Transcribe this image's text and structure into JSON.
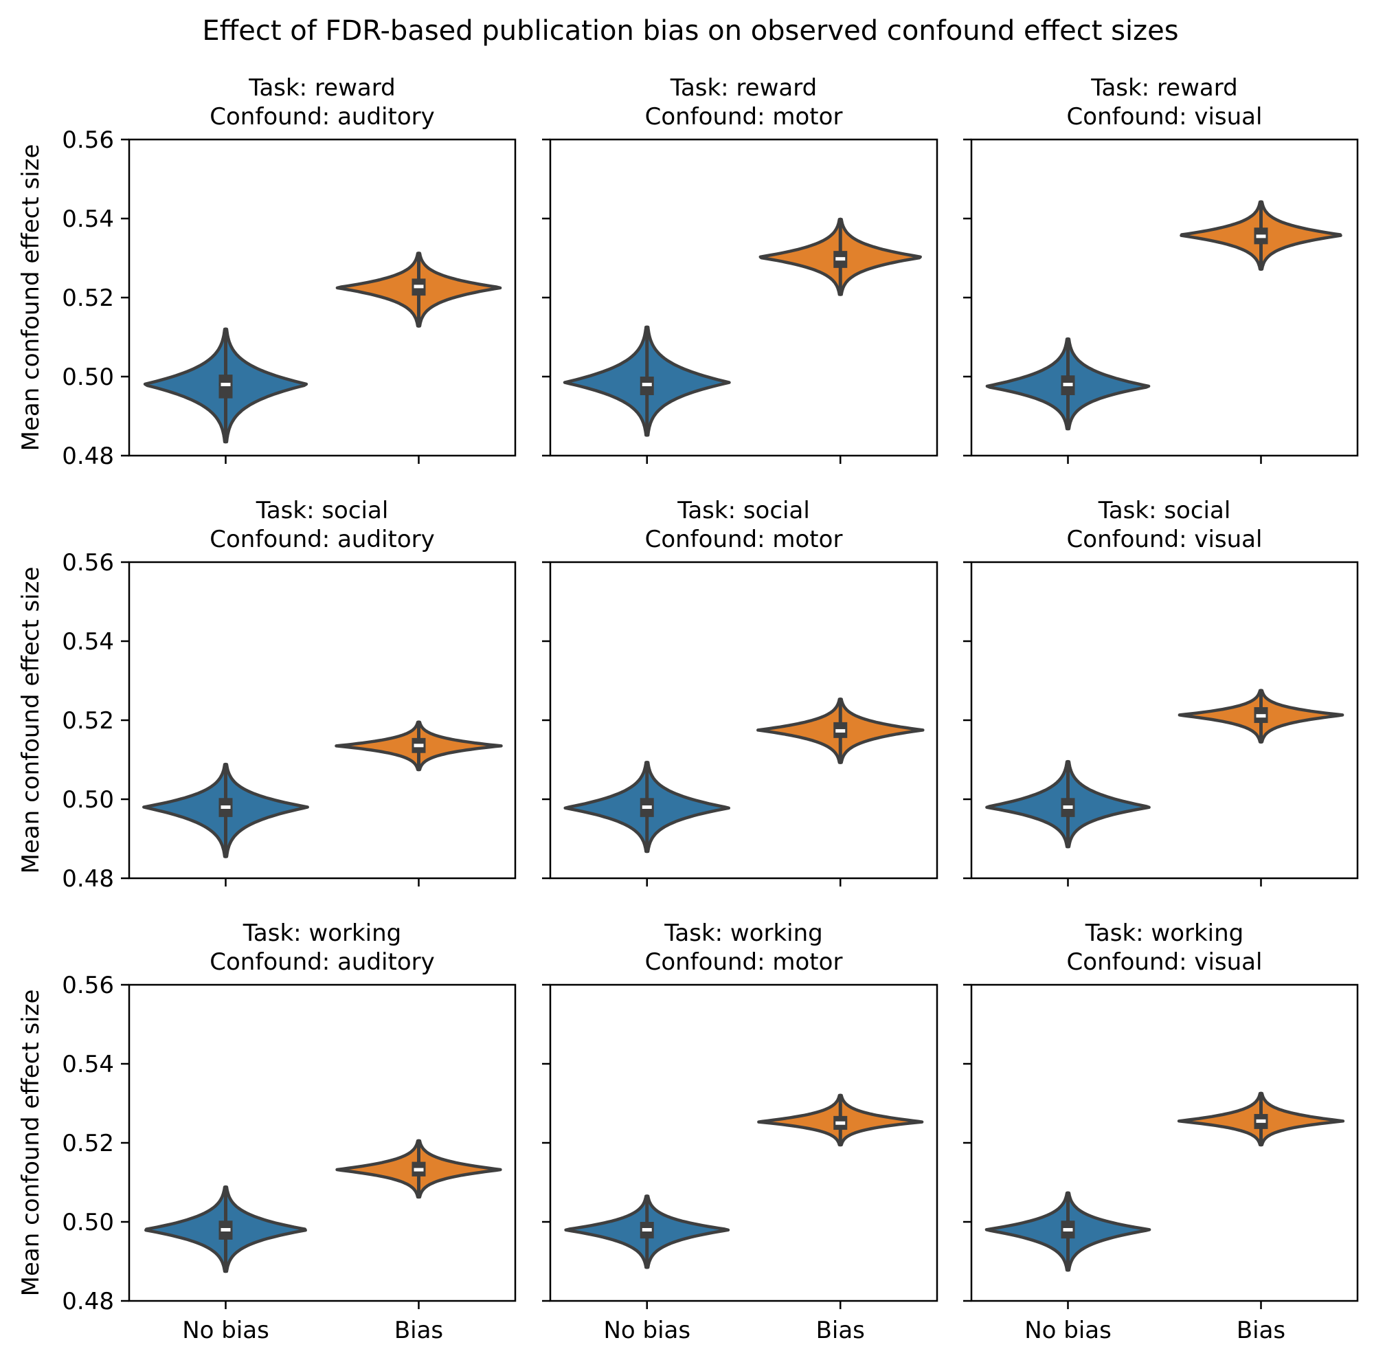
{
  "chart_data": {
    "type": "violin",
    "title": "Effect of FDR-based publication bias on observed confound effect sizes",
    "ylabel": "Mean confound effect size",
    "xlabel": "",
    "ylim": [
      0.48,
      0.56
    ],
    "yticks": [
      "0.48",
      "0.50",
      "0.52",
      "0.54",
      "0.56"
    ],
    "categories": [
      "No bias",
      "Bias"
    ],
    "colors": {
      "No bias": "#3274a1",
      "Bias": "#e1812c",
      "outline": "#3f3f3f"
    },
    "grid": false,
    "layout": "3x3 facet grid, shared y-axis",
    "panels": [
      {
        "task": "reward",
        "confound": "auditory",
        "title_line1": "Task: reward",
        "title_line2": "Confound: auditory",
        "series": [
          {
            "name": "No bias",
            "median": 0.498,
            "q1": 0.4945,
            "q3": 0.5005,
            "min": 0.4835,
            "max": 0.512,
            "mode": 0.498
          },
          {
            "name": "Bias",
            "median": 0.5228,
            "q1": 0.5205,
            "q3": 0.5248,
            "min": 0.5128,
            "max": 0.5312,
            "mode": 0.5225
          }
        ]
      },
      {
        "task": "reward",
        "confound": "motor",
        "title_line1": "Task: reward",
        "title_line2": "Confound: motor",
        "series": [
          {
            "name": "No bias",
            "median": 0.498,
            "q1": 0.4953,
            "q3": 0.5,
            "min": 0.4852,
            "max": 0.5125,
            "mode": 0.4985
          },
          {
            "name": "Bias",
            "median": 0.5298,
            "q1": 0.5275,
            "q3": 0.5318,
            "min": 0.5208,
            "max": 0.5398,
            "mode": 0.5302
          }
        ]
      },
      {
        "task": "reward",
        "confound": "visual",
        "title_line1": "Task: reward",
        "title_line2": "Confound: visual",
        "series": [
          {
            "name": "No bias",
            "median": 0.498,
            "q1": 0.4953,
            "q3": 0.5003,
            "min": 0.4868,
            "max": 0.5095,
            "mode": 0.4975
          },
          {
            "name": "Bias",
            "median": 0.5355,
            "q1": 0.5335,
            "q3": 0.5377,
            "min": 0.5272,
            "max": 0.5442,
            "mode": 0.5358
          }
        ]
      },
      {
        "task": "social",
        "confound": "auditory",
        "title_line1": "Task: social",
        "title_line2": "Confound: auditory",
        "series": [
          {
            "name": "No bias",
            "median": 0.498,
            "q1": 0.4955,
            "q3": 0.5003,
            "min": 0.4855,
            "max": 0.5088,
            "mode": 0.498
          },
          {
            "name": "Bias",
            "median": 0.5136,
            "q1": 0.5117,
            "q3": 0.5155,
            "min": 0.5075,
            "max": 0.5195,
            "mode": 0.5135
          }
        ]
      },
      {
        "task": "social",
        "confound": "motor",
        "title_line1": "Task: social",
        "title_line2": "Confound: motor",
        "series": [
          {
            "name": "No bias",
            "median": 0.498,
            "q1": 0.4955,
            "q3": 0.5003,
            "min": 0.4868,
            "max": 0.5093,
            "mode": 0.4978
          },
          {
            "name": "Bias",
            "median": 0.5173,
            "q1": 0.5155,
            "q3": 0.5195,
            "min": 0.5093,
            "max": 0.5253,
            "mode": 0.5175
          }
        ]
      },
      {
        "task": "social",
        "confound": "visual",
        "title_line1": "Task: social",
        "title_line2": "Confound: visual",
        "series": [
          {
            "name": "No bias",
            "median": 0.498,
            "q1": 0.4955,
            "q3": 0.5003,
            "min": 0.488,
            "max": 0.5095,
            "mode": 0.498
          },
          {
            "name": "Bias",
            "median": 0.5211,
            "q1": 0.5193,
            "q3": 0.5233,
            "min": 0.5145,
            "max": 0.5275,
            "mode": 0.5213
          }
        ]
      },
      {
        "task": "working",
        "confound": "auditory",
        "title_line1": "Task: working",
        "title_line2": "Confound: auditory",
        "series": [
          {
            "name": "No bias",
            "median": 0.498,
            "q1": 0.4955,
            "q3": 0.5003,
            "min": 0.4875,
            "max": 0.5088,
            "mode": 0.498
          },
          {
            "name": "Bias",
            "median": 0.5132,
            "q1": 0.5115,
            "q3": 0.5152,
            "min": 0.5063,
            "max": 0.5205,
            "mode": 0.5132
          }
        ]
      },
      {
        "task": "working",
        "confound": "motor",
        "title_line1": "Task: working",
        "title_line2": "Confound: motor",
        "series": [
          {
            "name": "No bias",
            "median": 0.498,
            "q1": 0.4958,
            "q3": 0.5,
            "min": 0.4885,
            "max": 0.5065,
            "mode": 0.498
          },
          {
            "name": "Bias",
            "median": 0.525,
            "q1": 0.5233,
            "q3": 0.5268,
            "min": 0.5195,
            "max": 0.532,
            "mode": 0.5253
          }
        ]
      },
      {
        "task": "working",
        "confound": "visual",
        "title_line1": "Task: working",
        "title_line2": "Confound: visual",
        "series": [
          {
            "name": "No bias",
            "median": 0.498,
            "q1": 0.4958,
            "q3": 0.5003,
            "min": 0.4878,
            "max": 0.5073,
            "mode": 0.498
          },
          {
            "name": "Bias",
            "median": 0.5255,
            "q1": 0.5235,
            "q3": 0.5273,
            "min": 0.5195,
            "max": 0.5325,
            "mode": 0.5255
          }
        ]
      }
    ]
  }
}
